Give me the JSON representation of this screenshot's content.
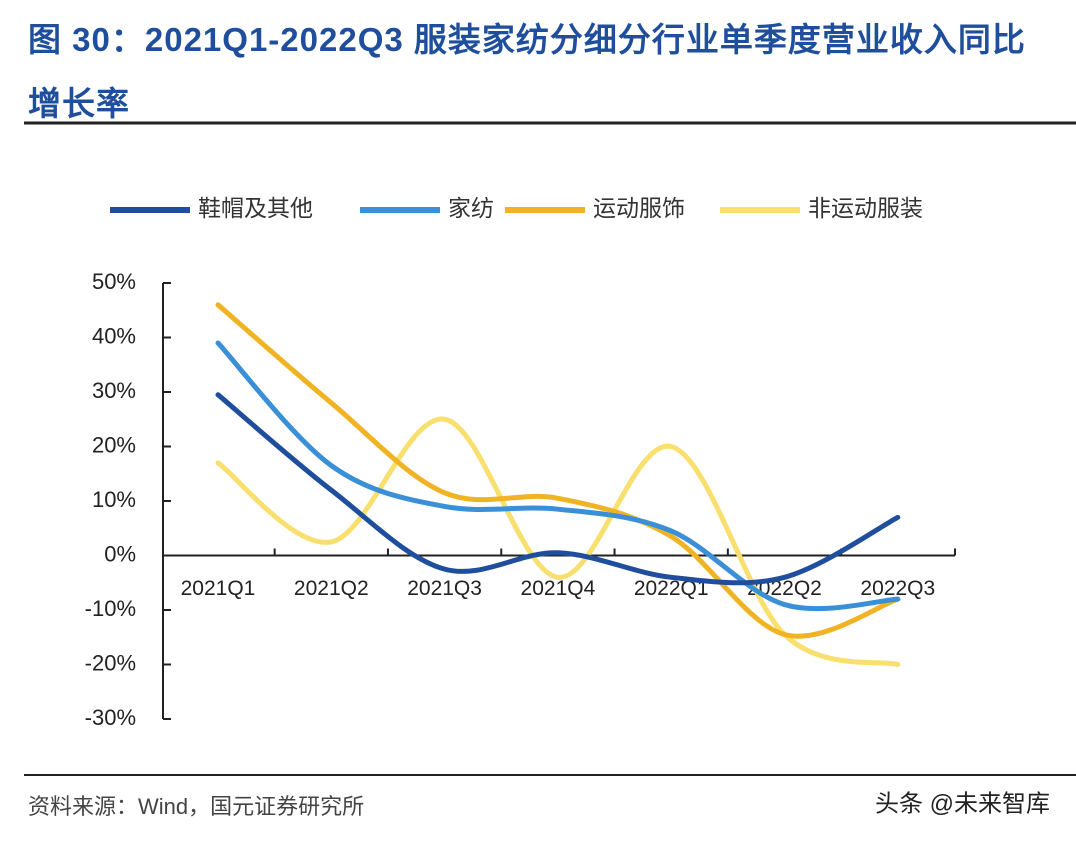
{
  "chart_data": {
    "type": "line",
    "title": "图 30：2021Q1-2022Q3 服装家纺分细分行业单季度营业收入同比增长率",
    "categories": [
      "2021Q1",
      "2021Q2",
      "2021Q3",
      "2021Q4",
      "2022Q1",
      "2022Q2",
      "2022Q3"
    ],
    "series": [
      {
        "name": "鞋帽及其他",
        "color": "#1f4e9c",
        "values": [
          29.5,
          12,
          -2.5,
          0.5,
          -4,
          -4,
          7
        ]
      },
      {
        "name": "家纺",
        "color": "#3a8fd6",
        "values": [
          39,
          16.5,
          9,
          8.5,
          4.5,
          -9,
          -8
        ]
      },
      {
        "name": "运动服饰",
        "color": "#f0b323",
        "values": [
          46,
          28,
          11.5,
          10.5,
          3.5,
          -14.5,
          -8
        ]
      },
      {
        "name": "非运动服装",
        "color": "#f8df6e",
        "values": [
          17,
          2.5,
          25,
          -4,
          20,
          -14.5,
          -20
        ]
      }
    ],
    "ylim": [
      -30,
      50
    ],
    "yticks": [
      {
        "value": 50,
        "label": "50%"
      },
      {
        "value": 40,
        "label": "40%"
      },
      {
        "value": 30,
        "label": "30%"
      },
      {
        "value": 20,
        "label": "20%"
      },
      {
        "value": 10,
        "label": "10%"
      },
      {
        "value": 0,
        "label": "0%"
      },
      {
        "value": -10,
        "label": "-10%"
      },
      {
        "value": -20,
        "label": "-20%"
      },
      {
        "value": -30,
        "label": "-30%"
      }
    ],
    "legend": "top",
    "source": "资料来源：Wind，国元证券研究所",
    "watermark": "头条 @未来智库"
  }
}
